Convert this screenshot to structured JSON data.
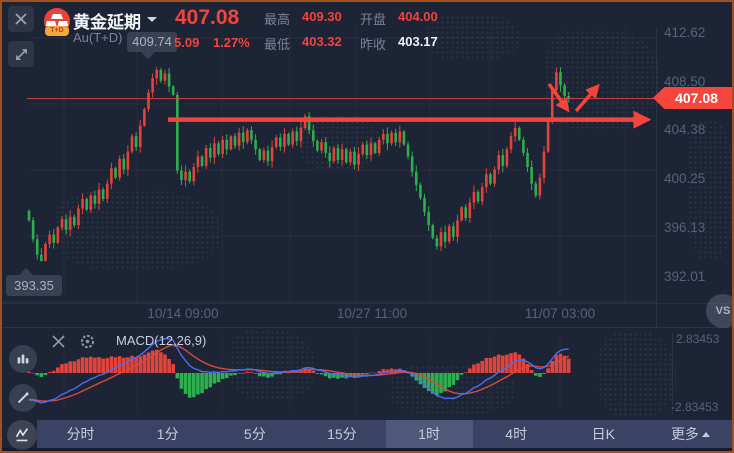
{
  "window": {
    "border_color": "#a1511f",
    "background": "#1d2435"
  },
  "header": {
    "symbol_title": "黄金延期",
    "symbol_code": "Au(T+D)",
    "icon_badge": "T+D",
    "price": "407.08",
    "change": "5.09",
    "change_pct": "1.27%",
    "stats": [
      {
        "label": "最高",
        "value": "409.30",
        "color": "red"
      },
      {
        "label": "最低",
        "value": "403.32",
        "color": "red"
      },
      {
        "label": "开盘",
        "value": "404.00",
        "color": "red"
      },
      {
        "label": "昨收",
        "value": "403.17",
        "color": "white"
      }
    ]
  },
  "chart_data": {
    "type": "candlestick+macd",
    "title": "黄金延期 Au(T+D) 1时 K线",
    "y_axis_labels": [
      "412.62",
      "408.50",
      "404.38",
      "400.25",
      "396.13",
      "392.01"
    ],
    "y_top_value": 412.62,
    "y_step": 4.12,
    "x_axis_labels": [
      "10/14 09:00",
      "10/27 11:00",
      "11/07 03:00"
    ],
    "open_first": 397.6,
    "high_value": 409.74,
    "low_value": 393.35,
    "closes": [
      396.8,
      395.2,
      393.9,
      393.35,
      394.8,
      395.6,
      394.9,
      396.2,
      396.9,
      396.0,
      397.1,
      396.4,
      397.8,
      398.6,
      397.7,
      398.9,
      398.2,
      399.4,
      398.6,
      399.9,
      401.2,
      400.4,
      402.0,
      401.1,
      402.6,
      403.9,
      403.0,
      404.8,
      406.2,
      407.6,
      408.8,
      409.5,
      408.6,
      409.2,
      408.1,
      407.4,
      401.0,
      400.2,
      400.9,
      400.1,
      401.3,
      402.2,
      401.4,
      402.9,
      402.1,
      403.3,
      402.4,
      403.6,
      402.8,
      403.9,
      403.1,
      404.2,
      403.4,
      404.4,
      403.6,
      402.8,
      401.9,
      402.7,
      401.8,
      403.0,
      403.8,
      403.0,
      404.1,
      403.2,
      404.3,
      403.5,
      404.6,
      405.6,
      404.4,
      403.5,
      402.7,
      403.4,
      402.5,
      401.8,
      402.9,
      401.9,
      402.8,
      401.7,
      402.6,
      401.5,
      402.4,
      403.2,
      402.3,
      403.3,
      402.5,
      403.6,
      404.1,
      403.3,
      404.2,
      403.4,
      404.3,
      403.2,
      402.2,
      400.9,
      399.8,
      398.7,
      397.5,
      396.4,
      395.3,
      394.6,
      395.8,
      395.0,
      396.3,
      395.4,
      396.8,
      397.9,
      397.0,
      398.3,
      399.2,
      398.4,
      399.6,
      400.7,
      399.9,
      401.1,
      402.3,
      401.4,
      402.8,
      403.9,
      404.6,
      403.6,
      402.5,
      401.3,
      399.9,
      398.9,
      400.4,
      402.6,
      405.2,
      407.8,
      409.3,
      408.2,
      407.3,
      407.08
    ],
    "current_price": "407.08",
    "current_price_value": 407.08,
    "high_marker": {
      "label": "409.74"
    },
    "low_marker": {
      "label": "393.35"
    },
    "trendline_price": 405.3,
    "annotation_arrows": [
      "down-to-support-line",
      "up-breakout"
    ],
    "macd": {
      "title": "MACD(12,26,9)",
      "fast": 12,
      "slow": 26,
      "signal": 9,
      "axis_max": "2.83453",
      "axis_min": "-2.83453",
      "axis_max_value": 2.83453
    },
    "colors": {
      "up": "#e2443c",
      "down": "#2eaf4f",
      "dif_line": "#4a6df2",
      "dea_line": "#d8493d",
      "accent_red": "#f5443c"
    }
  },
  "timeframes": {
    "items": [
      "分时",
      "1分",
      "5分",
      "15分",
      "1时",
      "4时",
      "日K"
    ],
    "selected": "1时",
    "more_label": "更多"
  },
  "buttons": {
    "vs": "VS"
  }
}
